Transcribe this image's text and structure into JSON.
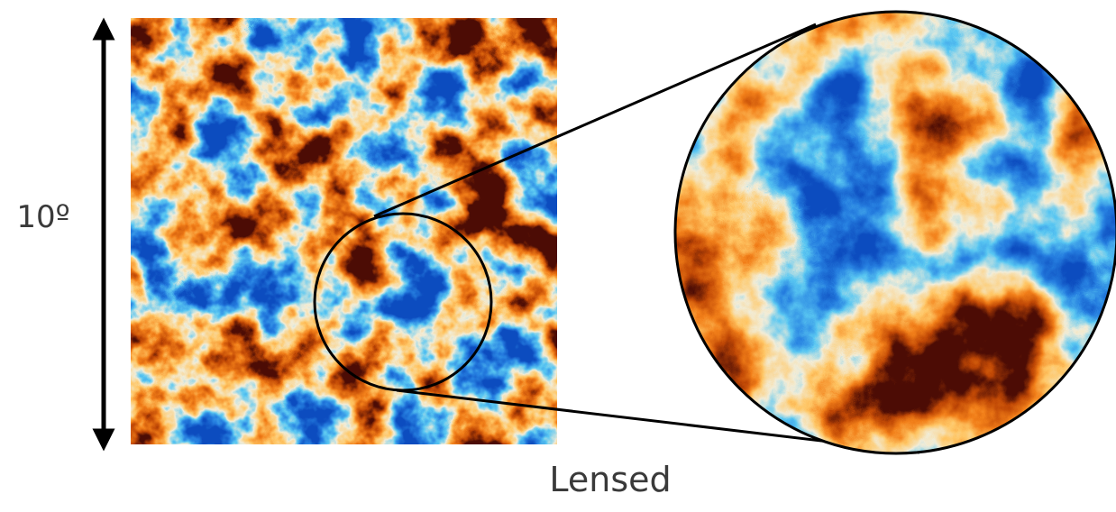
{
  "scale_label": "10º",
  "caption": "Lensed"
}
